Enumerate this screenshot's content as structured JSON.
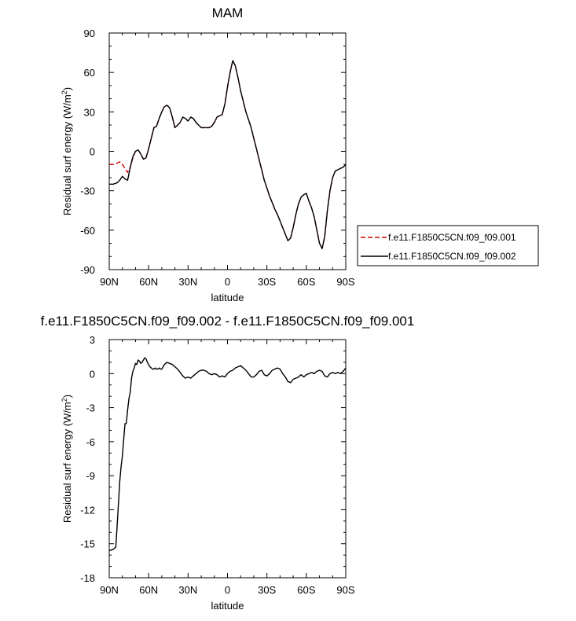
{
  "chart_data": [
    {
      "type": "line",
      "title": "MAM",
      "xlabel": "latitude",
      "ylabel": "Residual surf energy (W/m",
      "ylabel_sup": "2",
      "ylabel_close": ")",
      "xlim": [
        90,
        -90
      ],
      "ylim": [
        -90,
        90
      ],
      "xticks": [
        {
          "value": 90,
          "label": "90N"
        },
        {
          "value": 60,
          "label": "60N"
        },
        {
          "value": 30,
          "label": "30N"
        },
        {
          "value": 0,
          "label": "0"
        },
        {
          "value": -30,
          "label": "30S"
        },
        {
          "value": -60,
          "label": "60S"
        },
        {
          "value": -90,
          "label": "90S"
        }
      ],
      "yticks": [
        {
          "value": 90,
          "label": "90"
        },
        {
          "value": 60,
          "label": "60"
        },
        {
          "value": 30,
          "label": "30"
        },
        {
          "value": 0,
          "label": "0"
        },
        {
          "value": -30,
          "label": "-30"
        },
        {
          "value": -60,
          "label": "-60"
        },
        {
          "value": -90,
          "label": "-90"
        }
      ],
      "legend": {
        "placement": "right"
      },
      "series": [
        {
          "name": "f.e11.F1850C5CN.f09_f09.001",
          "color": "#cc0000",
          "dash": true,
          "x": [
            90,
            87,
            84,
            82,
            80,
            78,
            76,
            74,
            72,
            70,
            68,
            66,
            64,
            62,
            60,
            58,
            56,
            54,
            52,
            50,
            48,
            46,
            44,
            42,
            40,
            38,
            36,
            34,
            32,
            30,
            28,
            26,
            24,
            22,
            20,
            18,
            16,
            14,
            12,
            10,
            8,
            6,
            4,
            2,
            0,
            -2,
            -4,
            -6,
            -8,
            -10,
            -12,
            -14,
            -16,
            -18,
            -20,
            -22,
            -24,
            -26,
            -28,
            -30,
            -32,
            -34,
            -36,
            -38,
            -40,
            -42,
            -44,
            -46,
            -48,
            -50,
            -52,
            -54,
            -56,
            -58,
            -60,
            -62,
            -64,
            -66,
            -68,
            -70,
            -72,
            -74,
            -76,
            -78,
            -80,
            -82,
            -84,
            -86,
            -88,
            -90
          ],
          "y": [
            -10,
            -10,
            -9,
            -8,
            -10,
            -13,
            -16,
            -12,
            -5,
            0,
            1,
            -2,
            -6,
            -5,
            2,
            10,
            18,
            19,
            25,
            30,
            34,
            35,
            33,
            26,
            18,
            20,
            22,
            26,
            25,
            23,
            26,
            25,
            22,
            20,
            18,
            18,
            18,
            18,
            19,
            22,
            26,
            27,
            28,
            36,
            49,
            60,
            69,
            65,
            56,
            46,
            38,
            30,
            24,
            18,
            10,
            2,
            -6,
            -14,
            -22,
            -28,
            -34,
            -39,
            -44,
            -48,
            -53,
            -58,
            -63,
            -68,
            -66,
            -58,
            -48,
            -40,
            -35,
            -33,
            -32,
            -38,
            -43,
            -50,
            -60,
            -70,
            -74,
            -65,
            -45,
            -30,
            -20,
            -15,
            -14,
            -13,
            -12,
            -10
          ]
        },
        {
          "name": "f.e11.F1850C5CN.f09_f09.002",
          "color": "#000000",
          "dash": false,
          "x": [
            90,
            87,
            84,
            82,
            80,
            78,
            76,
            74,
            72,
            70,
            68,
            66,
            64,
            62,
            60,
            58,
            56,
            54,
            52,
            50,
            48,
            46,
            44,
            42,
            40,
            38,
            36,
            34,
            32,
            30,
            28,
            26,
            24,
            22,
            20,
            18,
            16,
            14,
            12,
            10,
            8,
            6,
            4,
            2,
            0,
            -2,
            -4,
            -6,
            -8,
            -10,
            -12,
            -14,
            -16,
            -18,
            -20,
            -22,
            -24,
            -26,
            -28,
            -30,
            -32,
            -34,
            -36,
            -38,
            -40,
            -42,
            -44,
            -46,
            -48,
            -50,
            -52,
            -54,
            -56,
            -58,
            -60,
            -62,
            -64,
            -66,
            -68,
            -70,
            -72,
            -74,
            -76,
            -78,
            -80,
            -82,
            -84,
            -86,
            -88,
            -90
          ],
          "y": [
            -25,
            -25,
            -24,
            -22,
            -19,
            -21,
            -22,
            -12,
            -4,
            0,
            1,
            -2,
            -6,
            -5,
            2,
            10,
            18,
            19,
            25,
            30,
            34,
            35,
            33,
            26,
            18,
            20,
            22,
            26,
            25,
            23,
            26,
            25,
            22,
            20,
            18,
            18,
            18,
            18,
            19,
            22,
            26,
            27,
            28,
            36,
            49,
            60,
            69,
            65,
            56,
            46,
            38,
            30,
            24,
            18,
            10,
            2,
            -6,
            -14,
            -22,
            -28,
            -34,
            -39,
            -44,
            -48,
            -53,
            -58,
            -63,
            -68,
            -66,
            -58,
            -48,
            -40,
            -35,
            -33,
            -32,
            -38,
            -43,
            -50,
            -60,
            -70,
            -74,
            -65,
            -45,
            -30,
            -20,
            -15,
            -14,
            -13,
            -12,
            -10
          ]
        }
      ]
    },
    {
      "type": "line",
      "title": "f.e11.F1850C5CN.f09_f09.002 - f.e11.F1850C5CN.f09_f09.001",
      "xlabel": "latitude",
      "ylabel": "Residual surf energy (W/m",
      "ylabel_sup": "2",
      "ylabel_close": ")",
      "xlim": [
        90,
        -90
      ],
      "ylim": [
        -18,
        3
      ],
      "xticks": [
        {
          "value": 90,
          "label": "90N"
        },
        {
          "value": 60,
          "label": "60N"
        },
        {
          "value": 30,
          "label": "30N"
        },
        {
          "value": 0,
          "label": "0"
        },
        {
          "value": -30,
          "label": "30S"
        },
        {
          "value": -60,
          "label": "60S"
        },
        {
          "value": -90,
          "label": "90S"
        }
      ],
      "yticks": [
        {
          "value": 3,
          "label": "3"
        },
        {
          "value": 0,
          "label": "0"
        },
        {
          "value": -3,
          "label": "-3"
        },
        {
          "value": -6,
          "label": "-6"
        },
        {
          "value": -9,
          "label": "-9"
        },
        {
          "value": -12,
          "label": "-12"
        },
        {
          "value": -15,
          "label": "-15"
        },
        {
          "value": -18,
          "label": "-18"
        }
      ],
      "series": [
        {
          "color": "#000000",
          "dash": false,
          "x": [
            90,
            87,
            85,
            84,
            83,
            82,
            81,
            80,
            79,
            78,
            77,
            76,
            75,
            74,
            73,
            72,
            71,
            70,
            69,
            68,
            67,
            66,
            65,
            64,
            63,
            62,
            61,
            60,
            59,
            58,
            57,
            56,
            55,
            54,
            53,
            52,
            51,
            50,
            49,
            48,
            46,
            44,
            42,
            40,
            38,
            36,
            34,
            32,
            30,
            28,
            26,
            24,
            22,
            20,
            18,
            16,
            14,
            12,
            10,
            8,
            6,
            4,
            2,
            0,
            -2,
            -4,
            -6,
            -8,
            -10,
            -12,
            -14,
            -16,
            -18,
            -20,
            -22,
            -24,
            -26,
            -28,
            -30,
            -32,
            -34,
            -36,
            -38,
            -40,
            -42,
            -44,
            -46,
            -48,
            -50,
            -52,
            -54,
            -56,
            -58,
            -60,
            -62,
            -64,
            -66,
            -68,
            -70,
            -72,
            -74,
            -76,
            -78,
            -80,
            -82,
            -84,
            -86,
            -88,
            -90
          ],
          "y": [
            -15.6,
            -15.5,
            -15.3,
            -13.5,
            -11.5,
            -9.5,
            -8.2,
            -7.3,
            -5.8,
            -4.4,
            -4.4,
            -3.2,
            -2.2,
            -1.6,
            -0.4,
            0.2,
            0.5,
            0.9,
            0.8,
            1.2,
            1.1,
            0.9,
            1.0,
            1.2,
            1.4,
            1.3,
            1.0,
            0.8,
            0.6,
            0.5,
            0.4,
            0.4,
            0.5,
            0.4,
            0.4,
            0.5,
            0.4,
            0.4,
            0.6,
            0.8,
            1.0,
            0.9,
            0.8,
            0.6,
            0.4,
            0.1,
            -0.2,
            -0.4,
            -0.3,
            -0.4,
            -0.2,
            0.0,
            0.2,
            0.3,
            0.3,
            0.2,
            0.0,
            -0.1,
            0.0,
            -0.1,
            -0.3,
            -0.2,
            -0.3,
            0.0,
            0.2,
            0.3,
            0.5,
            0.6,
            0.7,
            0.5,
            0.3,
            0.0,
            -0.3,
            -0.3,
            -0.1,
            0.2,
            0.3,
            -0.1,
            -0.2,
            0.0,
            0.3,
            0.4,
            0.5,
            0.4,
            0.0,
            -0.3,
            -0.7,
            -0.8,
            -0.5,
            -0.4,
            -0.3,
            -0.1,
            -0.3,
            -0.1,
            0.0,
            0.1,
            0.0,
            0.2,
            0.3,
            0.2,
            -0.2,
            -0.3,
            0.0,
            0.1,
            0.0,
            0.1,
            0.0,
            0.2,
            0.5
          ]
        }
      ]
    }
  ]
}
